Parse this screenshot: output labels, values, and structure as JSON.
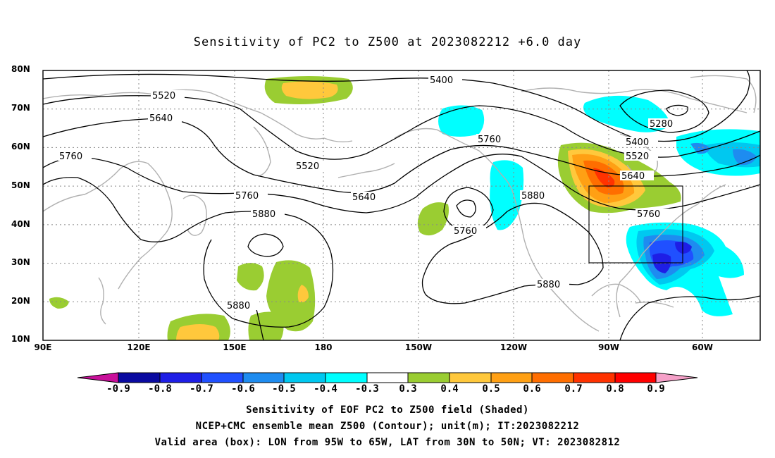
{
  "title": "Sensitivity of PC2 to Z500 at 2023082212 +6.0 day",
  "map": {
    "lat_labels": [
      "80N",
      "70N",
      "60N",
      "50N",
      "40N",
      "30N",
      "20N",
      "10N"
    ],
    "lon_labels": [
      "90E",
      "120E",
      "150E",
      "180",
      "150W",
      "120W",
      "90W",
      "60W"
    ],
    "lon_range": [
      "90E",
      "45W"
    ],
    "lat_range": [
      "10N",
      "80N"
    ],
    "grid": "dotted",
    "contour_labels": [
      "5400",
      "5520",
      "5640",
      "5760",
      "5880",
      "5280",
      "5520",
      "5640",
      "5760",
      "5880",
      "5400",
      "5520",
      "5640",
      "5760",
      "5760",
      "5880",
      "5880",
      "5760"
    ],
    "valid_box": {
      "lon": [
        "95W",
        "65W"
      ],
      "lat": [
        "30N",
        "50N"
      ]
    }
  },
  "colorbar": {
    "labels": [
      "-0.9",
      "-0.8",
      "-0.7",
      "-0.6",
      "-0.5",
      "-0.4",
      "-0.3",
      "0.3",
      "0.4",
      "0.5",
      "0.6",
      "0.7",
      "0.8",
      "0.9"
    ],
    "colors": [
      "#0a0aa0",
      "#1e1ee6",
      "#2050ff",
      "#1e8cf0",
      "#00c8f0",
      "#00ffff",
      "#ffffff",
      "#9acd32",
      "#ffc83c",
      "#ffa014",
      "#ff6e00",
      "#ff3200",
      "#ff0000"
    ],
    "low_end_color": "#c8109a",
    "high_end_color": "#f5a0c8"
  },
  "captions": [
    "Sensitivity of EOF PC2 to Z500 field (Shaded)",
    "NCEP+CMC ensemble mean Z500 (Contour); unit(m); IT:2023082212",
    "Valid area (box): LON from 95W to 65W, LAT from 30N to 50N; VT: 2023082812"
  ]
}
